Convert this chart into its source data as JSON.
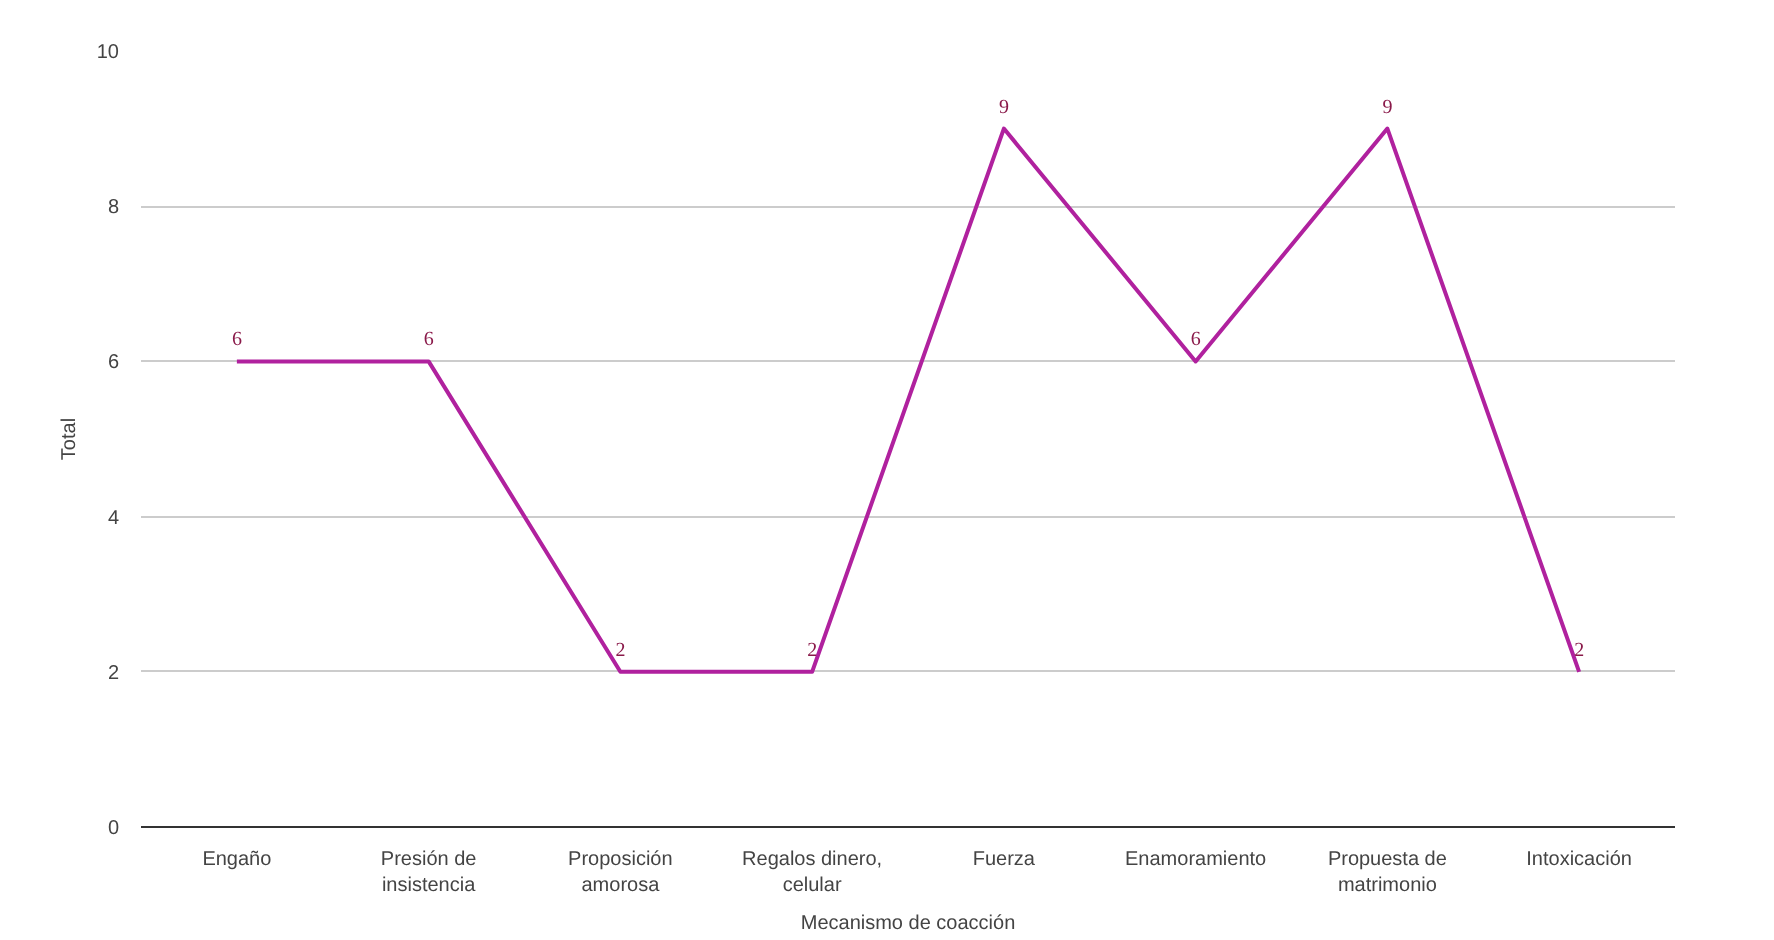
{
  "chart_data": {
    "type": "line",
    "xlabel": "Mecanismo de coacción",
    "ylabel": "Total",
    "categories": [
      "Engaño",
      "Presión de insistencia",
      "Proposición amorosa",
      "Regalos dinero, celular",
      "Fuerza",
      "Enamoramiento",
      "Propuesta de matrimonio",
      "Intoxicación"
    ],
    "series": [
      {
        "color": "#b0219e",
        "values": [
          6,
          6,
          2,
          2,
          9,
          6,
          9,
          2
        ]
      }
    ],
    "ylim": [
      0,
      10
    ],
    "yticks": [
      0,
      2,
      4,
      6,
      8,
      10
    ],
    "grid": "y",
    "data_labels": true,
    "marker": "none",
    "line_style": "solid"
  }
}
